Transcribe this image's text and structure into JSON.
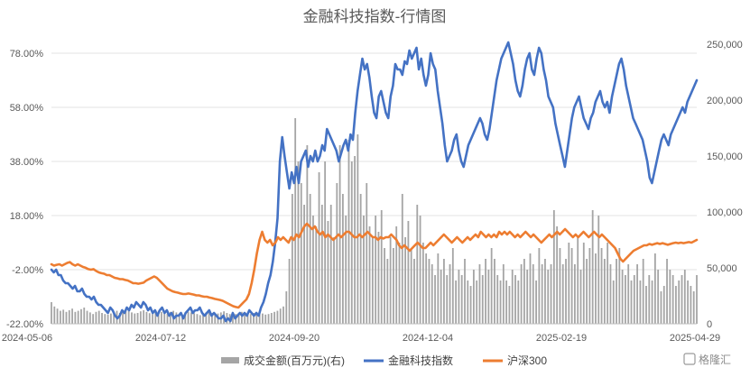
{
  "chart_data": {
    "type": "line",
    "title": "金融科技指数-行情图",
    "x_ticks": [
      "2024-05-06",
      "2024-07-12",
      "2024-09-20",
      "2024-12-04",
      "2025-02-19",
      "2025-04-29"
    ],
    "y_left_ticks": [
      "78.00%",
      "58.00%",
      "38.00%",
      "18.00%",
      "-2.00%",
      "-22.00%"
    ],
    "y_left_range": [
      -22,
      78
    ],
    "y_right_ticks": [
      "250,000",
      "200,000",
      "150,000",
      "100,000",
      "50,000",
      "0"
    ],
    "y_right_range": [
      0,
      250000
    ],
    "grid": "horizontal",
    "legend_position": "bottom",
    "series": [
      {
        "name": "成交金额(百万元)(右)",
        "kind": "bar",
        "axis": "right",
        "color": "#a5a5a5",
        "values": [
          20000,
          16000,
          14000,
          12000,
          13000,
          11000,
          12500,
          14000,
          11000,
          12000,
          13500,
          15000,
          12000,
          10500,
          9000,
          11000,
          12000,
          10000,
          9000,
          8500,
          9500,
          11000,
          12000,
          10000,
          11000,
          13000,
          12000,
          10500,
          9500,
          10000,
          11500,
          12500,
          11000,
          9800,
          9000,
          10500,
          12000,
          11000,
          10000,
          9500,
          11000,
          12000,
          10500,
          9000,
          8500,
          9500,
          11000,
          10500,
          9800,
          9000,
          8000,
          9000,
          10500,
          11000,
          10000,
          9000,
          9500,
          10500,
          11500,
          10000,
          9000,
          8500,
          9000,
          10000,
          11000,
          10500,
          9500,
          9000,
          10000,
          11000,
          10500,
          9500,
          8500,
          9000,
          10000,
          11000,
          12000,
          14000,
          16000,
          30000,
          60000,
          120000,
          190000,
          150000,
          130000,
          110000,
          165000,
          120000,
          100000,
          90000,
          140000,
          110000,
          150000,
          95000,
          110000,
          80000,
          130000,
          165000,
          120000,
          100000,
          170000,
          150000,
          155000,
          175000,
          120000,
          100000,
          130000,
          90000,
          80000,
          100000,
          85000,
          105000,
          70000,
          60000,
          80000,
          70000,
          90000,
          75000,
          120000,
          80000,
          95000,
          70000,
          60000,
          110000,
          100000,
          75000,
          65000,
          60000,
          55000,
          45000,
          65000,
          50000,
          60000,
          45000,
          55000,
          70000,
          40000,
          50000,
          45000,
          60000,
          40000,
          35000,
          50000,
          40000,
          55000,
          45000,
          60000,
          50000,
          70000,
          60000,
          45000,
          40000,
          55000,
          40000,
          35000,
          50000,
          45000,
          40000,
          55000,
          60000,
          50000,
          65000,
          55000,
          40000,
          70000,
          55000,
          60000,
          50000,
          55000,
          105000,
          90000,
          70000,
          55000,
          60000,
          75000,
          70000,
          55000,
          80000,
          50000,
          75000,
          60000,
          70000,
          105000,
          65000,
          100000,
          70000,
          60000,
          75000,
          55000,
          40000,
          60000,
          70000,
          50000,
          45000,
          55000,
          40000,
          45000,
          55000,
          40000,
          60000,
          35000,
          45000,
          40000,
          65000,
          50000,
          30000,
          35000,
          60000,
          50000,
          45000,
          35000,
          40000,
          45000,
          50000,
          40000,
          35000,
          30000,
          45000
        ]
      },
      {
        "name": "金融科技指数",
        "kind": "line",
        "axis": "left",
        "color": "#4472c4",
        "values": [
          -2,
          -3,
          -2,
          -4,
          -4,
          -6,
          -7,
          -7,
          -8,
          -9,
          -8,
          -10,
          -10,
          -9,
          -11,
          -12,
          -12,
          -13,
          -12,
          -14,
          -15,
          -15,
          -16,
          -17,
          -18,
          -16,
          -17,
          -19,
          -20,
          -19,
          -17,
          -18,
          -16,
          -17,
          -15,
          -16,
          -14,
          -15,
          -16,
          -14,
          -15,
          -17,
          -16,
          -18,
          -17,
          -19,
          -17,
          -16,
          -18,
          -17,
          -19,
          -18,
          -20,
          -19,
          -19,
          -18,
          -20,
          -18,
          -17,
          -16,
          -18,
          -17,
          -17,
          -16,
          -18,
          -19,
          -18,
          -17,
          -19,
          -18,
          -19,
          -20,
          -20,
          -19,
          -21,
          -20,
          -21,
          -18,
          -20,
          -19,
          -18,
          -19,
          -18,
          -19,
          -17,
          -18,
          -19,
          -18,
          -19,
          -16,
          -14,
          -11,
          -7,
          -4,
          1,
          8,
          17,
          38,
          47,
          40,
          34,
          28,
          34,
          30,
          36,
          30,
          38,
          40,
          42,
          36,
          40,
          38,
          42,
          38,
          40,
          44,
          42,
          50,
          48,
          46,
          44,
          42,
          38,
          41,
          44,
          46,
          42,
          48,
          46,
          56,
          64,
          70,
          76,
          72,
          74,
          69,
          62,
          56,
          54,
          62,
          64,
          60,
          56,
          54,
          62,
          66,
          74,
          72,
          72,
          70,
          75,
          74,
          79,
          76,
          78,
          80,
          72,
          76,
          70,
          66,
          70,
          78,
          74,
          72,
          64,
          58,
          52,
          44,
          38,
          40,
          42,
          46,
          48,
          42,
          38,
          36,
          40,
          44,
          46,
          48,
          50,
          52,
          54,
          52,
          48,
          46,
          50,
          56,
          62,
          68,
          72,
          76,
          78,
          80,
          82,
          78,
          74,
          68,
          64,
          62,
          66,
          72,
          76,
          78,
          72,
          70,
          76,
          80,
          78,
          72,
          68,
          62,
          60,
          58,
          52,
          48,
          44,
          40,
          36,
          42,
          48,
          54,
          58,
          60,
          62,
          58,
          54,
          52,
          50,
          54,
          56,
          60,
          62,
          64,
          60,
          58,
          60,
          56,
          62,
          66,
          70,
          74,
          76,
          72,
          66,
          62,
          58,
          54,
          52,
          50,
          48,
          46,
          42,
          38,
          32,
          30,
          34,
          38,
          42,
          46,
          48,
          46,
          44,
          48,
          50,
          52,
          54,
          56,
          58,
          56,
          60,
          62,
          64,
          66,
          68
        ]
      },
      {
        "name": "沪深300",
        "kind": "line",
        "axis": "left",
        "color": "#ed7d31",
        "values": [
          0,
          -0.5,
          -0.2,
          0,
          -0.5,
          0,
          0.5,
          0.8,
          0,
          -0.5,
          0,
          -0.5,
          -1,
          -1.3,
          -1.8,
          -2,
          -1.8,
          -2.5,
          -3,
          -3.3,
          -3.5,
          -4,
          -4,
          -4.5,
          -5,
          -5.2,
          -5.5,
          -5.5,
          -5.8,
          -6,
          -6.5,
          -7,
          -7,
          -7.2,
          -7,
          -6.8,
          -6,
          -5.5,
          -5,
          -4.5,
          -5,
          -6,
          -7,
          -8,
          -9,
          -9.5,
          -10,
          -10.3,
          -10.5,
          -10.8,
          -11,
          -11,
          -10.8,
          -11,
          -11.2,
          -11.5,
          -11.5,
          -11.8,
          -12,
          -12,
          -12.3,
          -12.5,
          -12.8,
          -13,
          -13.2,
          -13.5,
          -14,
          -14.5,
          -15,
          -15.5,
          -15.8,
          -16,
          -15,
          -14,
          -13,
          -11,
          -7,
          -2,
          4,
          9,
          12,
          9,
          8,
          9,
          7,
          8,
          10,
          9,
          10,
          9,
          8,
          10,
          9,
          11,
          10,
          12,
          14,
          15,
          14,
          13,
          14,
          12,
          11,
          12,
          10,
          11,
          10,
          9,
          10,
          11,
          10,
          11,
          12,
          12,
          11,
          10,
          10,
          11,
          10,
          11,
          12,
          11,
          10,
          10,
          9,
          10,
          9.5,
          10,
          10,
          11,
          10,
          9,
          7,
          6,
          7,
          6,
          5,
          6,
          7,
          8,
          7,
          6,
          6,
          7,
          8,
          7,
          8,
          9,
          10,
          11,
          10,
          9,
          8,
          9,
          10,
          9,
          8,
          9,
          10,
          9,
          10,
          11,
          10,
          12,
          11,
          10,
          11,
          10,
          11,
          10,
          12,
          11,
          12,
          11,
          12,
          11,
          10,
          11,
          10,
          11,
          12,
          11,
          10,
          11,
          10,
          9,
          8,
          9,
          10,
          11,
          10,
          11,
          12,
          11,
          12,
          13,
          12,
          11,
          10,
          11,
          10,
          11,
          12,
          11,
          10,
          11,
          12,
          11,
          10,
          11,
          10,
          9,
          8,
          7,
          6,
          4,
          2,
          1,
          2,
          3,
          4,
          5,
          5.5,
          6,
          6.5,
          7,
          7,
          7.5,
          7.2,
          7.5,
          7.8,
          7.5,
          7.8,
          7.5,
          7.2,
          7.5,
          7.8,
          8,
          7.8,
          8,
          7.8,
          8,
          8.2,
          8,
          8.5,
          9
        ]
      }
    ]
  },
  "watermark": "格隆汇"
}
